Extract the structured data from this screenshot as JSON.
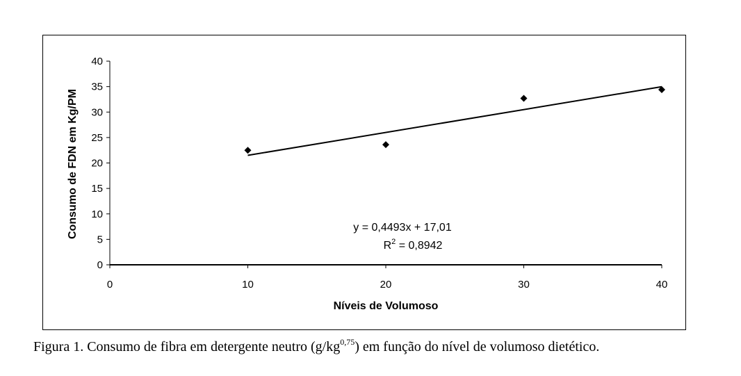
{
  "chart_data": {
    "type": "scatter",
    "xlabel": "Níveis de Volumoso",
    "ylabel": "Consumo de FDN em Kg/PM",
    "xlim": [
      0,
      40
    ],
    "ylim": [
      0,
      40
    ],
    "x_ticks": [
      "0",
      "10",
      "20",
      "30",
      "40"
    ],
    "y_ticks": [
      "0",
      "5",
      "10",
      "15",
      "20",
      "25",
      "30",
      "35",
      "40"
    ],
    "grid": false,
    "legend": "none",
    "series": [
      {
        "x": [
          10,
          20,
          30,
          40
        ],
        "y": [
          22.5,
          23.6,
          32.7,
          34.4
        ],
        "marker": "diamond",
        "color": "#000000"
      }
    ],
    "trendline": {
      "slope": 0.4493,
      "intercept": 17.01,
      "x_range": [
        10,
        40
      ],
      "equation": "y = 0,4493x + 17,01",
      "r2_prefix": "R",
      "r2_exponent": "2",
      "r2_value": " = 0,8942"
    }
  },
  "caption": {
    "prefix": "Figura 1. Consumo de fibra em detergente neutro (g/kg",
    "superscript": "0,75",
    "suffix": ") em função do nível de volumoso dietético."
  }
}
